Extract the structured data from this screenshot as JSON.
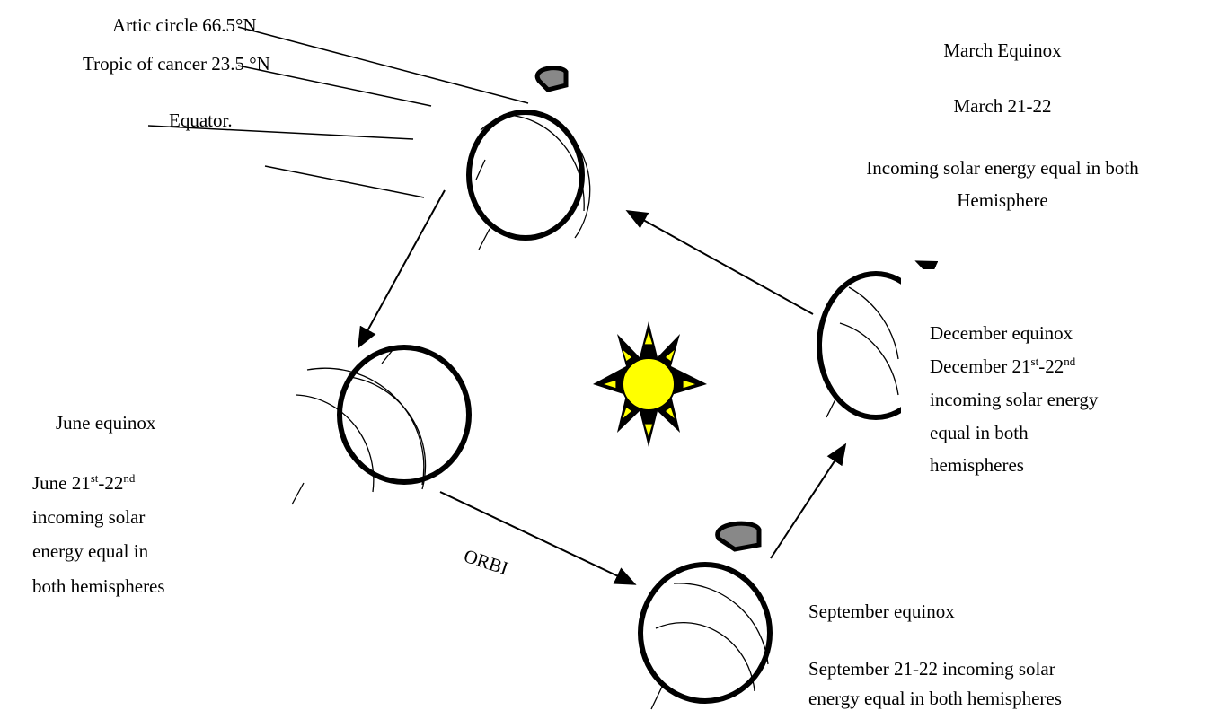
{
  "labels": {
    "arctic": "Artic circle 66.5°N",
    "tropic": "Tropic of cancer 23.5 °N",
    "equator": "Equator."
  },
  "march": {
    "title": "March Equinox",
    "date": "March 21-22",
    "lines": [
      "Incoming solar energy equal in both",
      "Hemisphere"
    ]
  },
  "december": {
    "title": "December equinox",
    "date": [
      "December 21",
      "st",
      "-22",
      "nd"
    ],
    "lines": [
      "incoming solar energy",
      "equal in both",
      "hemispheres"
    ]
  },
  "june": {
    "title": "June equinox",
    "date": [
      "June 21",
      "st",
      "-22",
      "nd"
    ],
    "lines": [
      "incoming solar",
      "energy equal in",
      "both hemispheres"
    ]
  },
  "orbit": "ORBI",
  "september": {
    "title": "September equinox",
    "lines": [
      "September 21-22 incoming solar",
      "energy equal in both hemispheres"
    ]
  }
}
